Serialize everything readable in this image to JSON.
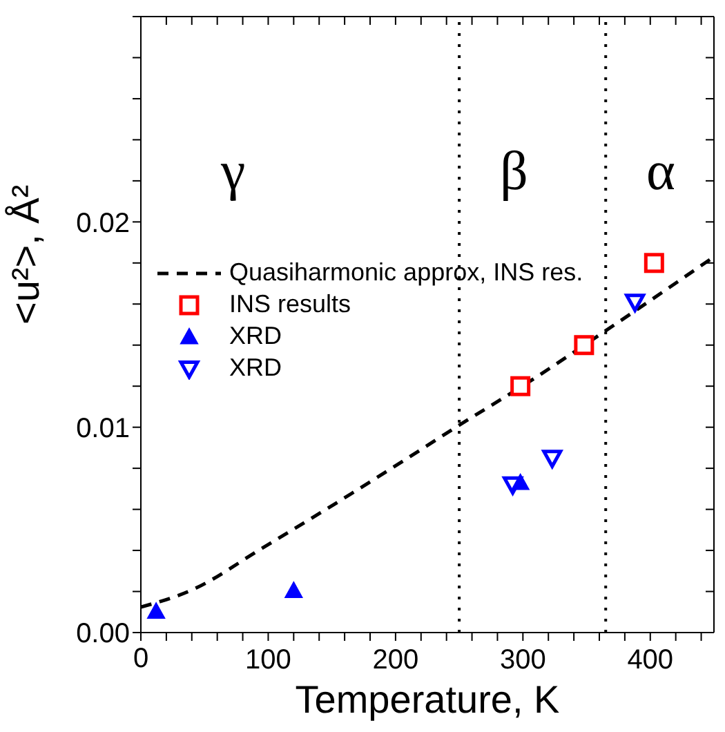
{
  "chart_data": {
    "type": "scatter",
    "xlabel": "Temperature, K",
    "ylabel": "<u²>, Å²",
    "xlim": [
      0,
      450
    ],
    "xticks": [
      0,
      {
        "value": 20,
        "label": null
      },
      {
        "value": 40,
        "label": null
      },
      {
        "value": 60,
        "label": null
      },
      {
        "value": 80,
        "label": null
      },
      100,
      {
        "value": 120,
        "label": null
      },
      {
        "value": 140,
        "label": null
      },
      {
        "value": 160,
        "label": null
      },
      {
        "value": 180,
        "label": null
      },
      200,
      {
        "value": 220,
        "label": null
      },
      {
        "value": 240,
        "label": null
      },
      {
        "value": 260,
        "label": null
      },
      {
        "value": 280,
        "label": null
      },
      300,
      {
        "value": 320,
        "label": null
      },
      {
        "value": 340,
        "label": null
      },
      {
        "value": 360,
        "label": null
      },
      {
        "value": 380,
        "label": null
      },
      400,
      {
        "value": 420,
        "label": null
      },
      {
        "value": 440,
        "label": null
      }
    ],
    "ylim": [
      0,
      0.03
    ],
    "yticks": [
      {
        "value": 0,
        "label": "0.00"
      },
      {
        "value": 0.002,
        "label": null
      },
      {
        "value": 0.004,
        "label": null
      },
      {
        "value": 0.006,
        "label": null
      },
      {
        "value": 0.008,
        "label": null
      },
      {
        "value": 0.01,
        "label": "0.01"
      },
      {
        "value": 0.012,
        "label": null
      },
      {
        "value": 0.014,
        "label": null
      },
      {
        "value": 0.016,
        "label": null
      },
      {
        "value": 0.018,
        "label": null
      },
      {
        "value": 0.02,
        "label": "0.02"
      },
      {
        "value": 0.022,
        "label": null
      },
      {
        "value": 0.024,
        "label": null
      },
      {
        "value": 0.026,
        "label": null
      },
      {
        "value": 0.028,
        "label": null
      },
      {
        "value": 0.03,
        "label": null
      }
    ],
    "grid": false,
    "legend": "top left",
    "series": [
      {
        "name": "Quasiharmonic approx, INS res.",
        "type": "line",
        "color": "#000000",
        "line_style": "dashed",
        "marker": "none",
        "x": [
          0,
          41,
          95,
          148,
          202,
          250,
          302,
          365,
          450
        ],
        "values": [
          0.00124,
          0.0021,
          0.0041,
          0.0061,
          0.0082,
          0.0101,
          0.0121,
          0.0147,
          0.0183
        ]
      },
      {
        "name": "INS results",
        "color": "#ff0000",
        "marker": "square",
        "x": [
          298,
          348,
          403
        ],
        "values": [
          0.012,
          0.014,
          0.018
        ]
      },
      {
        "name": "XRD",
        "color": "#0000ff",
        "marker": "triangle",
        "x": [
          12,
          120,
          298
        ],
        "values": [
          0.00103,
          0.00204,
          0.0073
        ]
      },
      {
        "name": "XRD",
        "color": "#0000ff",
        "marker": "triangle-down",
        "x": [
          292,
          323,
          388
        ],
        "values": [
          0.0072,
          0.0085,
          0.0161
        ]
      }
    ],
    "ref_lines": [
      {
        "axis": "x",
        "value": 250,
        "color": "#000000",
        "line_style": "dotted"
      },
      {
        "axis": "x",
        "value": 365,
        "color": "#000000",
        "line_style": "dotted"
      }
    ],
    "annotations": [
      "γ",
      "β",
      "α"
    ]
  }
}
